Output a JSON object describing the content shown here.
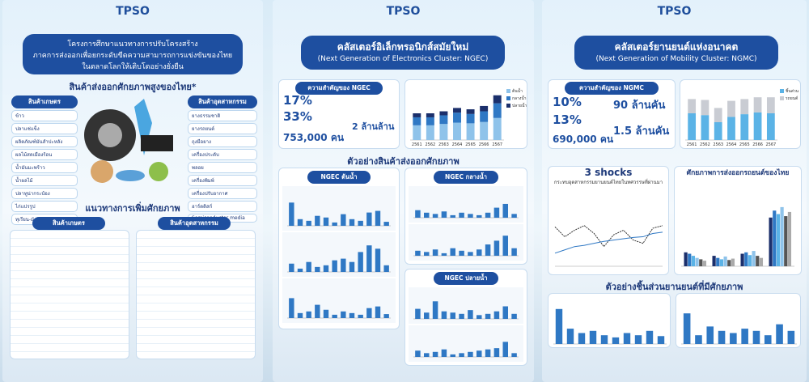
{
  "panels": [
    {
      "logo": "TPSO",
      "title": [
        "โครงการศึกษาแนวทางการปรับโครงสร้าง",
        "ภาคการส่งออกเพื่อยกระดับขีดความสามารถการแข่งขันของไทย",
        "ในตลาดโลกให้เติบโตอย่างยั่งยืน"
      ],
      "subtitle": "สินค้าส่งออกศักยภาพสูงของไทย*",
      "agri": {
        "heading": "สินค้าเกษตร",
        "items": [
          "ข้าว",
          "ปลาแช่แข็ง",
          "ผลิตภัณฑ์มันสำปะหลัง",
          "ผลไม้สดเมืองร้อน",
          "น้ำมันมะพร้าว",
          "น้ำผลไม้",
          "ปลาทูน่ากระป๋อง",
          "ไก่แปรรูป",
          "ทุเรียน-มังคุด"
        ]
      },
      "industry": {
        "heading": "สินค้าอุตสาหกรรม",
        "items": [
          "ยางธรรมชาติ",
          "ยางรถยนต์",
          "ถุงมือยาง",
          "เครื่องประดับ",
          "พลอย",
          "เครื่องพิมพ์",
          "เครื่องปรับอากาศ",
          "ฮาร์ดดิสก์",
          "Semiconductor media"
        ]
      },
      "guideline": {
        "heading": "แนวทางการเพิ่มศักยภาพ",
        "tabs": [
          "สินค้าเกษตร",
          "สินค้าอุตสาหกรรม"
        ]
      }
    },
    {
      "logo": "TPSO",
      "title": "คลัสเตอร์อิเล็กทรอนิกส์สมัยใหม่",
      "subtitle": "(Next Generation of Electronics Cluster: NGEC)",
      "importance": {
        "heading": "ความสำคัญของ NGEC",
        "stats": [
          "17%",
          "33%",
          "753,000 คน",
          "2 ล้านล้าน"
        ]
      },
      "export_chart": {
        "type": "bar",
        "stacked": true,
        "categories": [
          "2561",
          "2562",
          "2563",
          "2564",
          "2565",
          "2566",
          "2567"
        ],
        "ylim": [
          0,
          80
        ],
        "series": [
          {
            "name": "ต้นน้ำ",
            "color": "#8fc3ea",
            "values": [
              22,
              22,
              24,
              26,
              25,
              27,
              33
            ]
          },
          {
            "name": "กลางน้ำ",
            "color": "#2f78c4",
            "values": [
              12,
              12,
              13,
              15,
              14,
              16,
              22
            ]
          },
          {
            "name": "ปลายน้ำ",
            "color": "#1b2f6b",
            "values": [
              6,
              6,
              6,
              7,
              7,
              8,
              12
            ]
          }
        ]
      },
      "examples_heading": "ตัวอย่างสินค้าส่งออกศักยภาพ",
      "groups": [
        {
          "heading": "NGEC ต้นน้ำ",
          "charts": [
            {
              "type": "bar",
              "ylim": [
                0,
                100
              ],
              "color": "#2f78c4",
              "values": [
                70,
                20,
                15,
                30,
                25,
                10,
                35,
                20,
                15,
                40,
                45,
                12
              ]
            },
            {
              "type": "bar",
              "ylim": [
                0,
                100
              ],
              "color": "#2f78c4",
              "values": [
                25,
                10,
                30,
                15,
                20,
                35,
                40,
                30,
                60,
                80,
                70,
                20
              ]
            },
            {
              "type": "bar",
              "ylim": [
                0,
                100
              ],
              "color": "#2f78c4",
              "values": [
                60,
                15,
                20,
                40,
                25,
                10,
                20,
                15,
                10,
                30,
                35,
                12
              ]
            }
          ]
        },
        {
          "heading": "NGEC กลางน้ำ",
          "charts": [
            {
              "type": "bar",
              "ylim": [
                0,
                100
              ],
              "color": "#2f78c4",
              "values": [
                30,
                20,
                15,
                25,
                10,
                20,
                15,
                10,
                20,
                40,
                55,
                15
              ]
            },
            {
              "type": "bar",
              "ylim": [
                0,
                100
              ],
              "color": "#2f78c4",
              "values": [
                20,
                15,
                25,
                10,
                30,
                20,
                15,
                25,
                45,
                60,
                80,
                30
              ]
            }
          ]
        },
        {
          "heading": "NGEC ปลายน้ำ",
          "charts": [
            {
              "type": "bar",
              "ylim": [
                0,
                100
              ],
              "color": "#2f78c4",
              "values": [
                40,
                25,
                70,
                30,
                25,
                20,
                35,
                15,
                20,
                30,
                50,
                20
              ]
            },
            {
              "type": "bar",
              "ylim": [
                0,
                100
              ],
              "color": "#2f78c4",
              "values": [
                25,
                15,
                20,
                30,
                10,
                15,
                20,
                25,
                30,
                35,
                60,
                15
              ]
            }
          ]
        }
      ]
    },
    {
      "logo": "TPSO",
      "title": "คลัสเตอร์ยานยนต์แห่งอนาคต",
      "subtitle": "(Next Generation of Mobility Cluster: NGMC)",
      "importance": {
        "heading": "ความสำคัญของ NGMC",
        "stats": [
          "10%",
          "13%",
          "690,000 คน",
          "90 ล้านคัน",
          "1.5 ล้านคัน"
        ]
      },
      "export_chart": {
        "type": "bar",
        "stacked": true,
        "categories": [
          "2561",
          "2562",
          "2563",
          "2564",
          "2565",
          "2566",
          "2567"
        ],
        "ylim": [
          0,
          60
        ],
        "series": [
          {
            "name": "ชิ้นส่วน",
            "color": "#5bb3e6",
            "values": [
              30,
              28,
              20,
              26,
              29,
              31,
              30
            ]
          },
          {
            "name": "รถยนต์",
            "color": "#c9ccd3",
            "values": [
              16,
              17,
              16,
              18,
              17,
              17,
              18
            ]
          }
        ]
      },
      "shocks": {
        "title": "3 shocks",
        "subtitle": "กระทบอุตสาหกรรมยานยนต์ไทยในทศวรรษที่ผ่านมา",
        "chart": {
          "type": "line",
          "ylim": [
            0,
            100
          ],
          "series": [
            {
              "color": "#333333",
              "values": [
                60,
                45,
                55,
                62,
                50,
                30,
                48,
                55,
                40,
                35,
                58,
                62
              ]
            },
            {
              "color": "#2f78c4",
              "values": [
                20,
                25,
                30,
                32,
                35,
                38,
                40,
                42,
                44,
                45,
                50,
                52
              ]
            }
          ]
        }
      },
      "potential": {
        "title": "ศักยภาพการส่งออกรถยนต์ของไทย",
        "chart": {
          "type": "bar",
          "grouped": true,
          "ylim": [
            0,
            100
          ],
          "series": [
            {
              "color": "#1b2f6b",
              "values": [
                20,
                15,
                18,
                70
              ]
            },
            {
              "color": "#2f78c4",
              "values": [
                18,
                12,
                20,
                80
              ]
            },
            {
              "color": "#5bb3e6",
              "values": [
                15,
                10,
                16,
                75
              ]
            },
            {
              "color": "#8fc3ea",
              "values": [
                12,
                14,
                22,
                85
              ]
            },
            {
              "color": "#555555",
              "values": [
                10,
                9,
                15,
                72
              ]
            },
            {
              "color": "#aaaaaa",
              "values": [
                8,
                11,
                12,
                78
              ]
            }
          ]
        }
      },
      "parts": {
        "heading": "ตัวอย่างชิ้นส่วนยานยนต์ที่มีศักยภาพ",
        "charts": [
          {
            "type": "bar",
            "ylim": [
              0,
              100
            ],
            "color": "#2f78c4",
            "values": [
              80,
              35,
              25,
              30,
              20,
              15,
              25,
              20,
              30,
              18
            ]
          },
          {
            "type": "bar",
            "ylim": [
              0,
              100
            ],
            "color": "#2f78c4",
            "values": [
              70,
              20,
              40,
              30,
              25,
              35,
              30,
              20,
              45,
              30
            ]
          }
        ]
      }
    }
  ]
}
